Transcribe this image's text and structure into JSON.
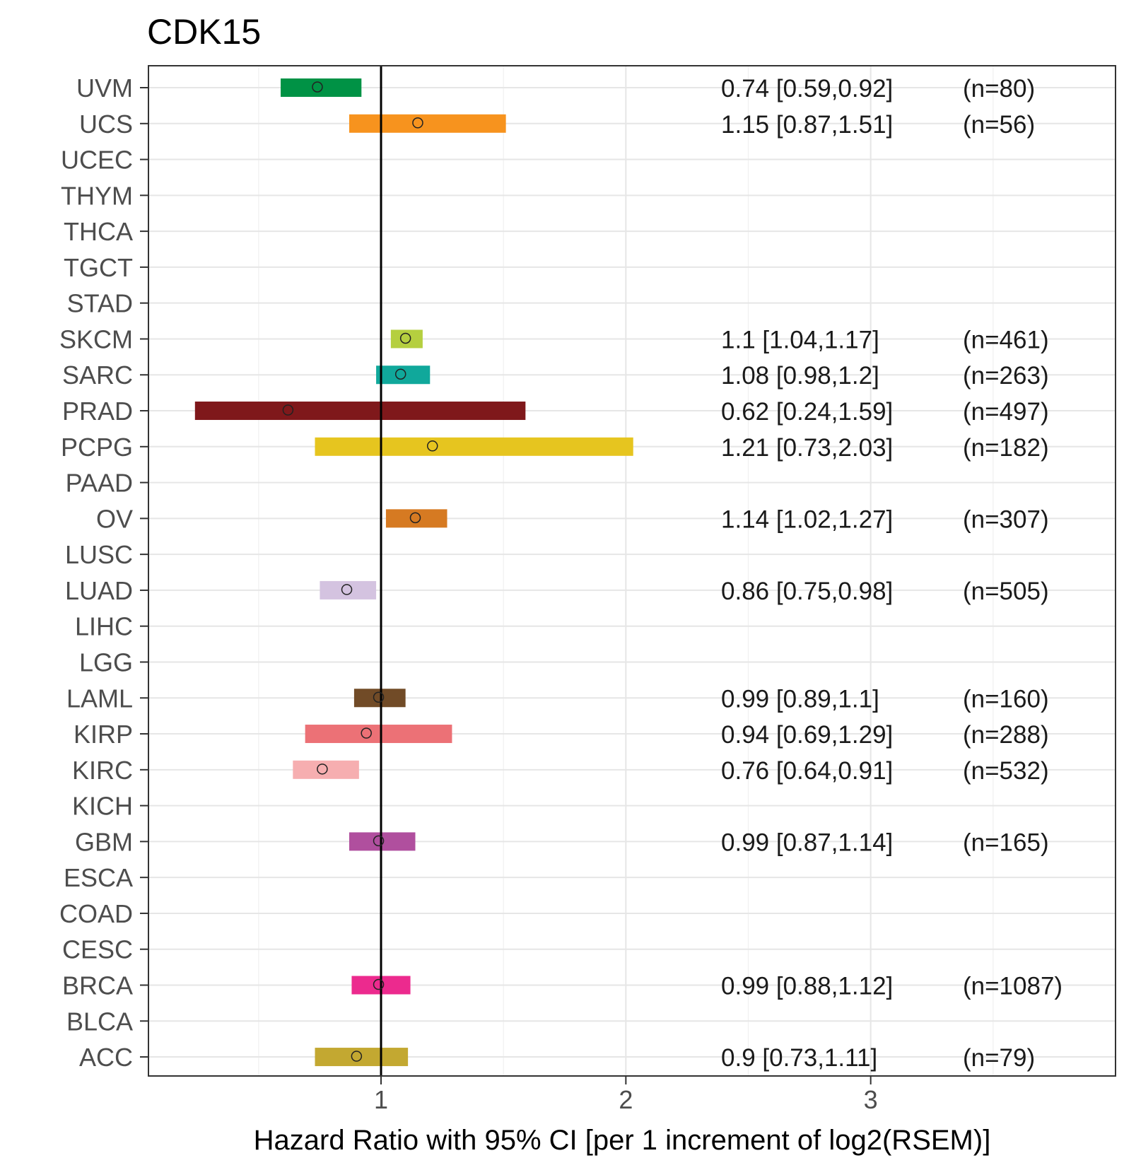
{
  "chart_data": {
    "type": "forest",
    "title": "CDK15",
    "xlabel": "Hazard Ratio with 95% CI [per 1 increment of log2(RSEM)]",
    "ylabel": "",
    "xlim": [
      0.05,
      4.0
    ],
    "xticks": [
      1,
      2,
      3
    ],
    "grid": true,
    "reference_line": 1,
    "categories": [
      "UVM",
      "UCS",
      "UCEC",
      "THYM",
      "THCA",
      "TGCT",
      "STAD",
      "SKCM",
      "SARC",
      "PRAD",
      "PCPG",
      "PAAD",
      "OV",
      "LUSC",
      "LUAD",
      "LIHC",
      "LGG",
      "LAML",
      "KIRP",
      "KIRC",
      "KICH",
      "GBM",
      "ESCA",
      "COAD",
      "CESC",
      "BRCA",
      "BLCA",
      "ACC"
    ],
    "rows": [
      {
        "cancer": "UVM",
        "hr": 0.74,
        "lo": 0.59,
        "hi": 0.92,
        "label": "0.74 [0.59,0.92]",
        "n": "(n=80)",
        "color": "#009245"
      },
      {
        "cancer": "UCS",
        "hr": 1.15,
        "lo": 0.87,
        "hi": 1.51,
        "label": "1.15 [0.87,1.51]",
        "n": "(n=56)",
        "color": "#F7931E"
      },
      {
        "cancer": "UCEC"
      },
      {
        "cancer": "THYM"
      },
      {
        "cancer": "THCA"
      },
      {
        "cancer": "TGCT"
      },
      {
        "cancer": "STAD"
      },
      {
        "cancer": "SKCM",
        "hr": 1.1,
        "lo": 1.04,
        "hi": 1.17,
        "label": "1.1 [1.04,1.17]",
        "n": "(n=461)",
        "color": "#B5CF3F"
      },
      {
        "cancer": "SARC",
        "hr": 1.08,
        "lo": 0.98,
        "hi": 1.2,
        "label": "1.08 [0.98,1.2]",
        "n": "(n=263)",
        "color": "#10A89B"
      },
      {
        "cancer": "PRAD",
        "hr": 0.62,
        "lo": 0.24,
        "hi": 1.59,
        "label": "0.62 [0.24,1.59]",
        "n": "(n=497)",
        "color": "#7F181B"
      },
      {
        "cancer": "PCPG",
        "hr": 1.21,
        "lo": 0.73,
        "hi": 2.03,
        "label": "1.21 [0.73,2.03]",
        "n": "(n=182)",
        "color": "#E6C51F"
      },
      {
        "cancer": "PAAD"
      },
      {
        "cancer": "OV",
        "hr": 1.14,
        "lo": 1.02,
        "hi": 1.27,
        "label": "1.14 [1.02,1.27]",
        "n": "(n=307)",
        "color": "#D67A22"
      },
      {
        "cancer": "LUSC"
      },
      {
        "cancer": "LUAD",
        "hr": 0.86,
        "lo": 0.75,
        "hi": 0.98,
        "label": "0.86 [0.75,0.98]",
        "n": "(n=505)",
        "color": "#D4C3E0"
      },
      {
        "cancer": "LIHC"
      },
      {
        "cancer": "LGG"
      },
      {
        "cancer": "LAML",
        "hr": 0.99,
        "lo": 0.89,
        "hi": 1.1,
        "label": "0.99 [0.89,1.1]",
        "n": "(n=160)",
        "color": "#714B27"
      },
      {
        "cancer": "KIRP",
        "hr": 0.94,
        "lo": 0.69,
        "hi": 1.29,
        "label": "0.94 [0.69,1.29]",
        "n": "(n=288)",
        "color": "#EC7176"
      },
      {
        "cancer": "KIRC",
        "hr": 0.76,
        "lo": 0.64,
        "hi": 0.91,
        "label": "0.76 [0.64,0.91]",
        "n": "(n=532)",
        "color": "#F6AEB0"
      },
      {
        "cancer": "KICH"
      },
      {
        "cancer": "GBM",
        "hr": 0.99,
        "lo": 0.87,
        "hi": 1.14,
        "label": "0.99 [0.87,1.14]",
        "n": "(n=165)",
        "color": "#B04F9E"
      },
      {
        "cancer": "ESCA"
      },
      {
        "cancer": "COAD"
      },
      {
        "cancer": "CESC"
      },
      {
        "cancer": "BRCA",
        "hr": 0.99,
        "lo": 0.88,
        "hi": 1.12,
        "label": "0.99 [0.88,1.12]",
        "n": "(n=1087)",
        "color": "#EC2A8E"
      },
      {
        "cancer": "BLCA"
      },
      {
        "cancer": "ACC",
        "hr": 0.9,
        "lo": 0.73,
        "hi": 1.11,
        "label": "0.9 [0.73,1.11]",
        "n": "(n=79)",
        "color": "#C3A831"
      }
    ]
  }
}
